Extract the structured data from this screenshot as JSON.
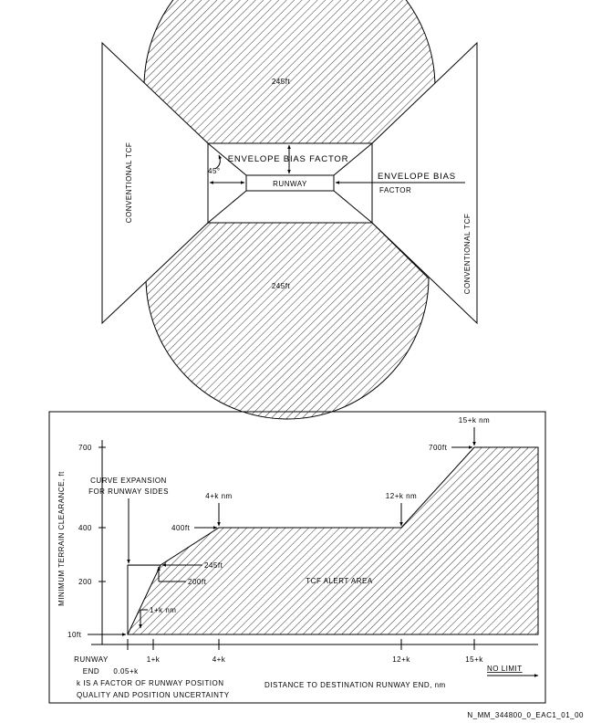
{
  "top_diagram": {
    "upper_zone_label": "245ft",
    "lower_zone_label": "245ft",
    "left_tcf_label": "CONVENTIONAL TCF",
    "right_tcf_label": "CONVENTIONAL TCF",
    "envelope_bias_label": "ENVELOPE BIAS FACTOR",
    "angle_label": "45°",
    "runway_label": "RUNWAY",
    "envelope_bias_side_line1": "ENVELOPE BIAS",
    "envelope_bias_side_line2": "FACTOR"
  },
  "bottom_chart": {
    "y_axis_title": "MINIMUM TERRAIN CLEARANCE, ft",
    "x_axis_title": "DISTANCE TO DESTINATION RUNWAY END, nm",
    "y_ticks": [
      "700",
      "400",
      "200",
      "10ft"
    ],
    "x_ticks": [
      "0.05+k",
      "1+k",
      "4+k",
      "12+k",
      "15+k"
    ],
    "runway_end_line1": "RUNWAY",
    "runway_end_line2": "END",
    "no_limit": "NO LIMIT",
    "curve_expansion_line1": "CURVE EXPANSION",
    "curve_expansion_line2": "FOR RUNWAY SIDES",
    "label_4k_nm": "4+k nm",
    "label_12k_nm": "12+k nm",
    "label_15k_nm": "15+k nm",
    "label_700ft": "700ft",
    "label_400ft": "400ft",
    "label_245ft": "245ft",
    "label_200ft": "200ft",
    "label_1k_nm": "1+k nm",
    "area_label": "TCF ALERT AREA",
    "footnote_line1": "k IS A FACTOR OF RUNWAY POSITION",
    "footnote_line2": "QUALITY AND POSITION UNCERTAINTY"
  },
  "figure_id": "N_MM_344800_0_EAC1_01_00"
}
